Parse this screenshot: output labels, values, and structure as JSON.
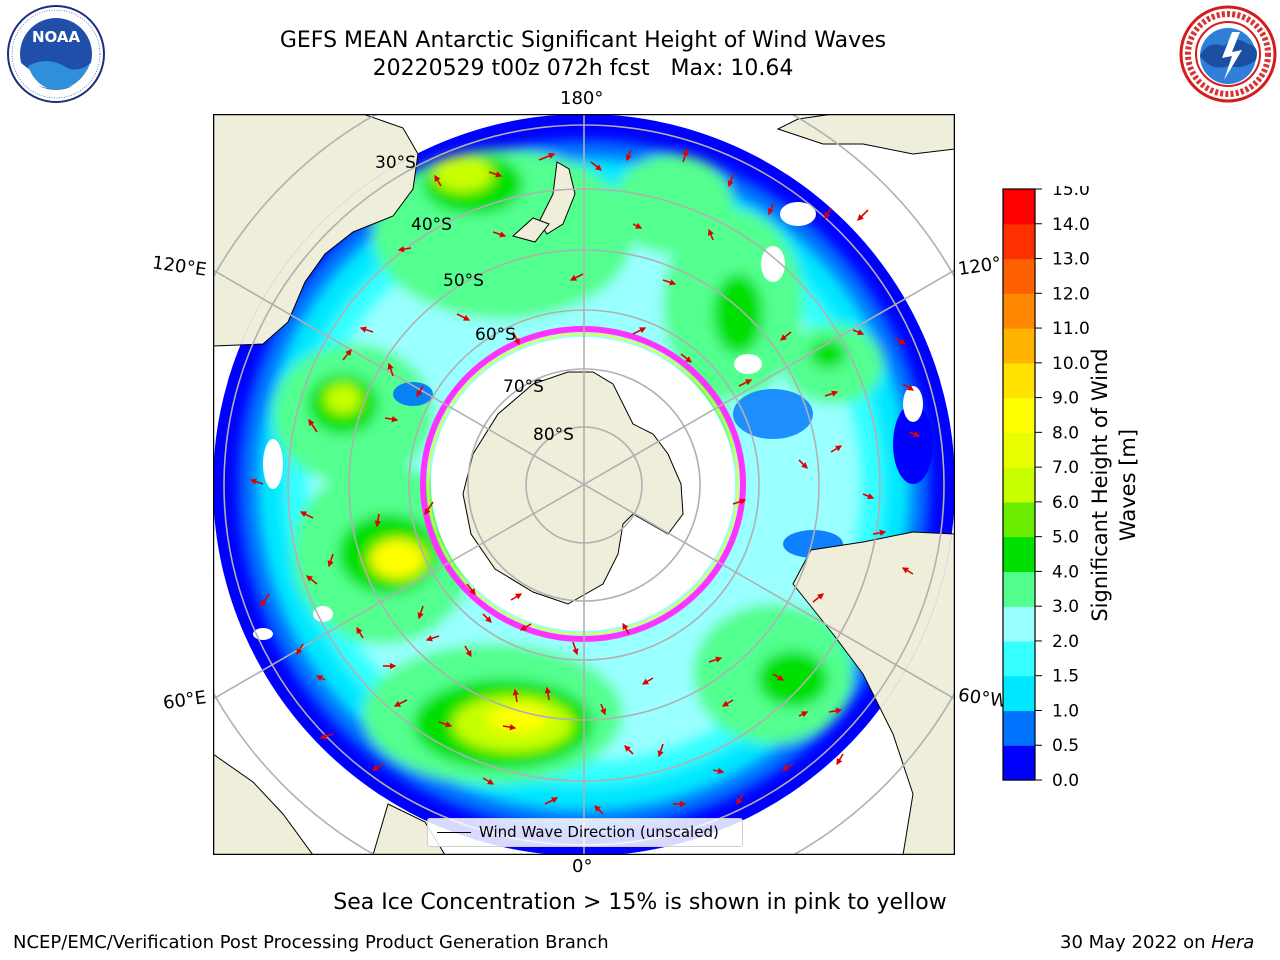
{
  "header": {
    "title_line1": "GEFS MEAN Antarctic Significant Height of Wind Waves",
    "title_line2": "20220529 t00z 072h fcst   Max: 10.64"
  },
  "logos": {
    "left": {
      "name": "noaa-logo",
      "text": "NOAA",
      "ring_text": "NATIONAL OCEANIC AND ATMOSPHERIC ADMINISTRATION · U.S. DEPARTMENT OF COMMERCE"
    },
    "right": {
      "name": "nws-logo",
      "ring_text": "NATIONAL WEATHER SERVICE"
    }
  },
  "map": {
    "lon_labels": {
      "top": "180°",
      "bottom": "0°",
      "left_upper": "120°E",
      "left_lower": "60°E",
      "right_upper": "120°",
      "right_lower": "60°W"
    },
    "lat_labels": [
      "30°S",
      "40°S",
      "50°S",
      "60°S",
      "70°S",
      "80°S"
    ],
    "legend_label": "Wind Wave Direction (unscaled)",
    "colors": {
      "land": "#efeedb",
      "ice_edge": "#ff33ff",
      "arrow": "#e00000",
      "grid": "#b0b0b0"
    }
  },
  "colorbar": {
    "title": "Significant Height of Wind Waves [m]",
    "ticks": [
      "0.0",
      "0.5",
      "1.0",
      "1.5",
      "2.0",
      "3.0",
      "4.0",
      "5.0",
      "6.0",
      "7.0",
      "8.0",
      "9.0",
      "10.0",
      "11.0",
      "12.0",
      "13.0",
      "14.0",
      "15.0"
    ],
    "colors": [
      "#0000ff",
      "#0073ff",
      "#00e8ff",
      "#35ffff",
      "#99ffff",
      "#52ff8e",
      "#00e000",
      "#6aec00",
      "#c8ff00",
      "#e9ff00",
      "#ffff00",
      "#ffe200",
      "#ffb400",
      "#ff8800",
      "#ff6000",
      "#ff3000",
      "#ff0000"
    ]
  },
  "caption": "Sea Ice Concentration > 15% is shown in pink to yellow",
  "footer": {
    "left": "NCEP/EMC/Verification Post Processing Product Generation Branch",
    "right_prefix": "30 May 2022 on ",
    "right_host": "Hera"
  }
}
